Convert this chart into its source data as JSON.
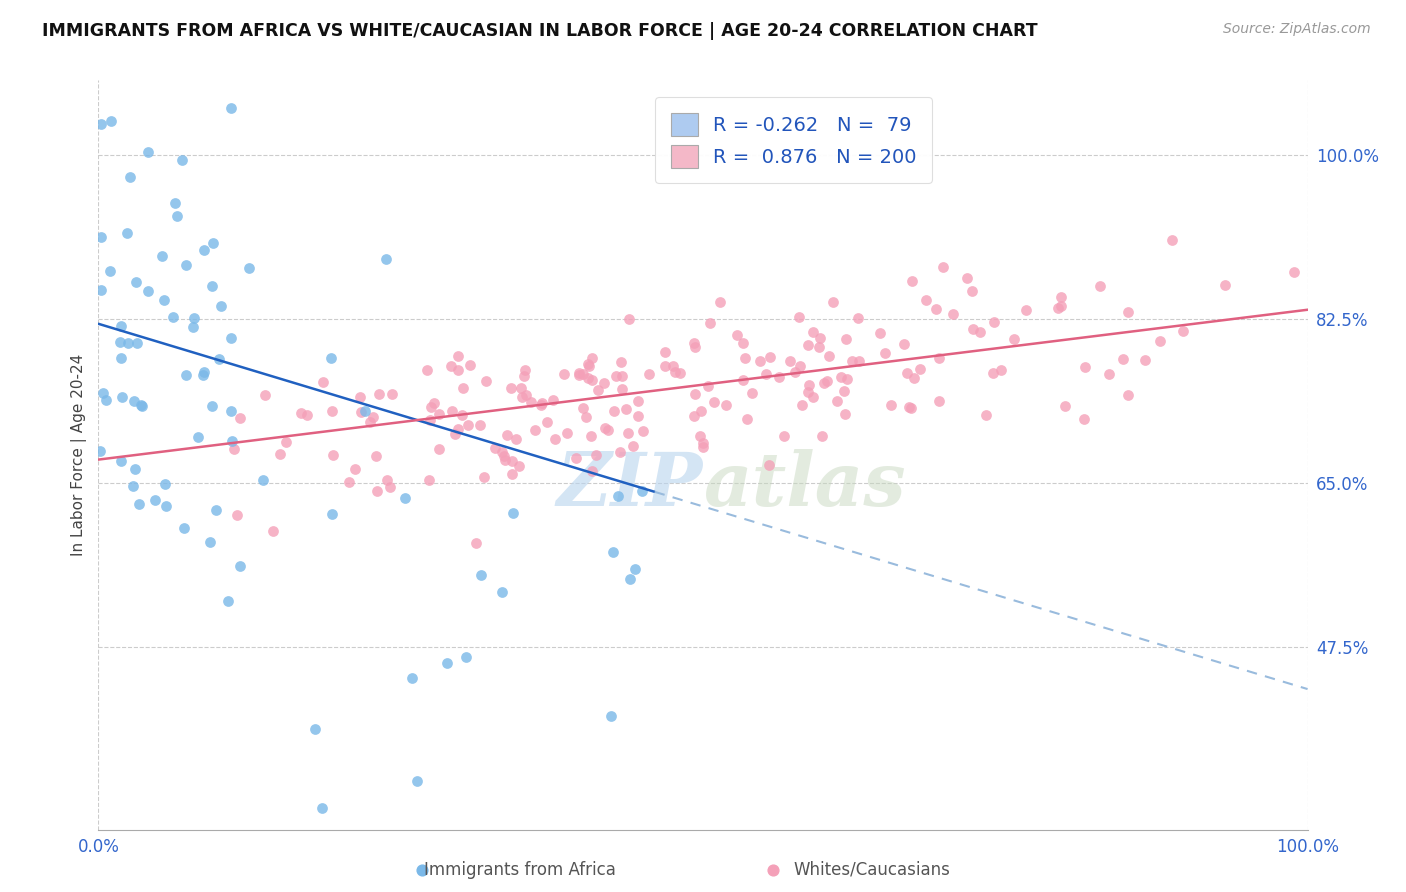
{
  "title": "IMMIGRANTS FROM AFRICA VS WHITE/CAUCASIAN IN LABOR FORCE | AGE 20-24 CORRELATION CHART",
  "source": "Source: ZipAtlas.com",
  "ylabel": "In Labor Force | Age 20-24",
  "legend_labels": [
    "Immigrants from Africa",
    "Whites/Caucasians"
  ],
  "R_africa": -0.262,
  "N_africa": 79,
  "R_white": 0.876,
  "N_white": 200,
  "africa_color": "#7ab8e8",
  "white_color": "#f4a0b8",
  "africa_line_color": "#2060c0",
  "white_line_color": "#e06080",
  "africa_legend_color": "#aecbf0",
  "white_legend_color": "#f4b8c8",
  "xmin": 0.0,
  "xmax": 1.0,
  "ymin": 0.28,
  "ymax": 1.08,
  "yticks": [
    0.475,
    0.65,
    0.825,
    1.0
  ],
  "ytick_labels": [
    "47.5%",
    "65.0%",
    "82.5%",
    "100.0%"
  ],
  "xticks": [
    0.0,
    0.2,
    0.4,
    0.6,
    0.8,
    1.0
  ],
  "xtick_labels": [
    "0.0%",
    "",
    "",
    "",
    "",
    "100.0%"
  ],
  "watermark_zip": "ZIP",
  "watermark_atlas": "atlas",
  "africa_scatter_seed": 7,
  "white_scatter_seed": 42,
  "africa_line_start_y": 0.82,
  "africa_line_end_y": 0.43,
  "white_line_start_y": 0.675,
  "white_line_end_y": 0.835
}
